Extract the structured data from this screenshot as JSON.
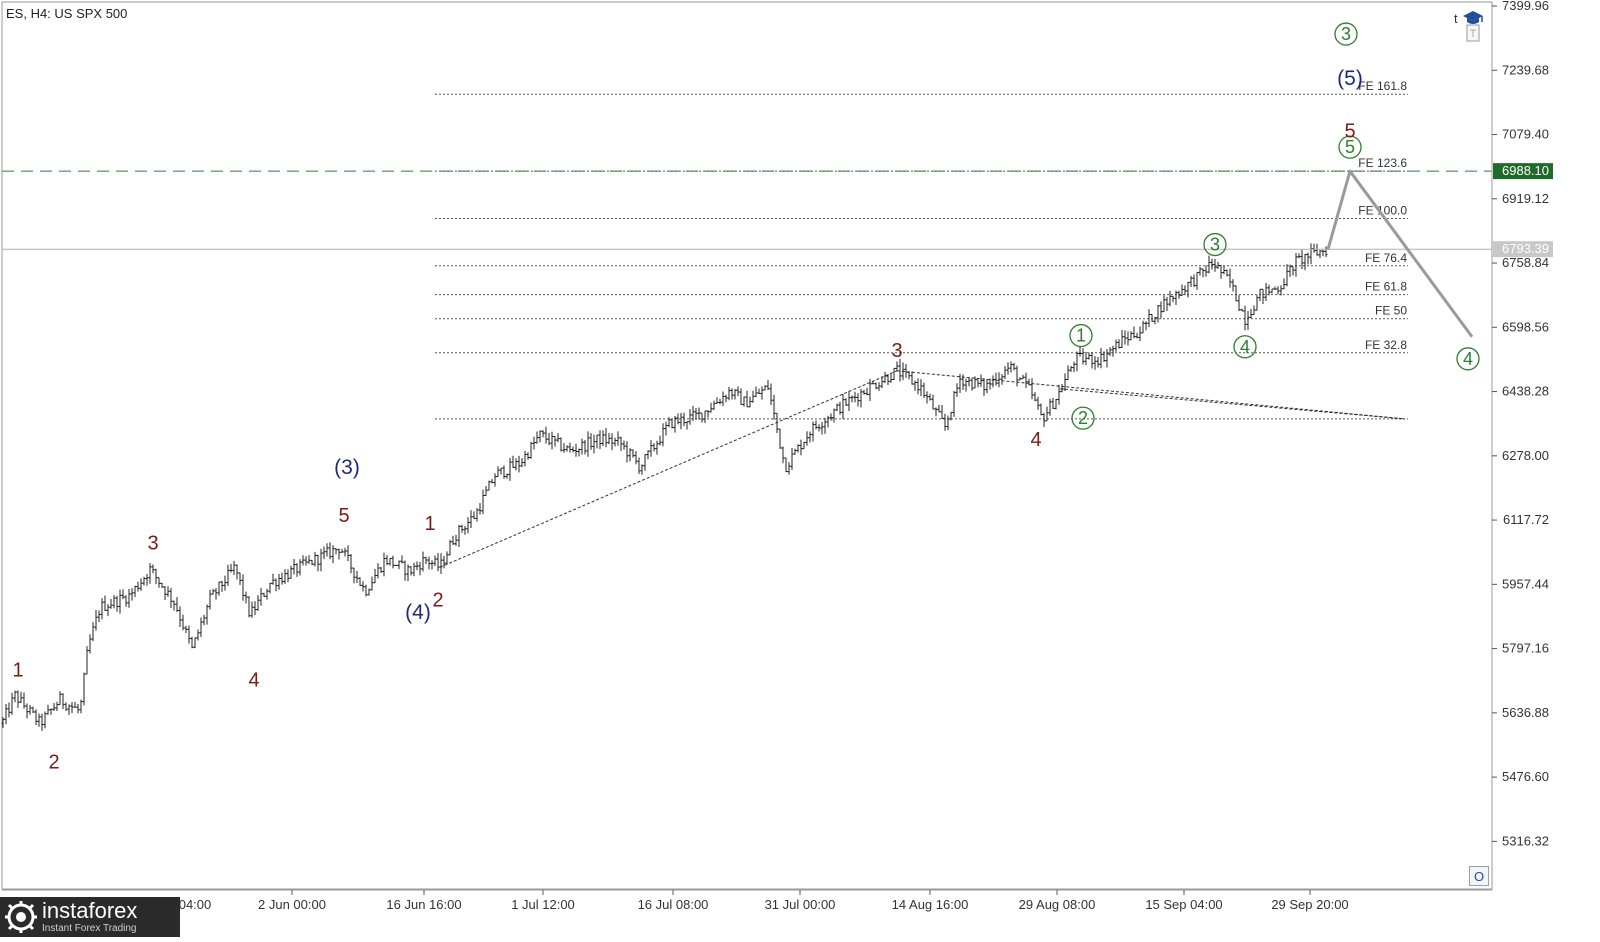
{
  "header": {
    "title": "ES, H4:  US SPX 500"
  },
  "toolbar": {
    "t_label": "t",
    "icon": "graduation-cap-icon",
    "sub_icon": "document-icon"
  },
  "watermark": {
    "brand": "instaforex",
    "tagline": "Instant Forex Trading"
  },
  "corner_button": {
    "label": "O",
    "icon": "circle-icon"
  },
  "colors": {
    "bars": "#222222",
    "dark_red": "#7b1b13",
    "navy": "#1c2b78",
    "green": "#2f7d2f",
    "target_line": "#2e7d32",
    "price_line": "#b0b0b0",
    "projection": "#9a9a9a",
    "fib": "#555555"
  },
  "chart_data": {
    "type": "ohlc",
    "symbol": "ES",
    "timeframe": "H4",
    "instrument": "US SPX 500",
    "y_range": [
      5195,
      7400
    ],
    "y_ticks": [
      "7399.96",
      "7239.68",
      "7079.40",
      "6919.12",
      "6758.84",
      "6598.56",
      "6438.28",
      "6278.00",
      "6117.72",
      "5957.44",
      "5797.16",
      "5636.88",
      "5476.60",
      "5316.32"
    ],
    "x_labels": [
      "2 Jun 00:00",
      "16 Jun 16:00",
      "1 Jul 12:00",
      "16 Jul 08:00",
      "31 Jul 00:00",
      "14 Aug 16:00",
      "29 Aug 08:00",
      "15 Sep 04:00",
      "29 Sep 20:00"
    ],
    "x_label_partial": "04:00",
    "price_path": [
      [
        0,
        5600
      ],
      [
        15,
        5680
      ],
      [
        40,
        5610
      ],
      [
        60,
        5670
      ],
      [
        80,
        5640
      ],
      [
        88,
        5800
      ],
      [
        100,
        5900
      ],
      [
        130,
        5930
      ],
      [
        150,
        5995
      ],
      [
        175,
        5910
      ],
      [
        192,
        5795
      ],
      [
        210,
        5920
      ],
      [
        235,
        6000
      ],
      [
        250,
        5880
      ],
      [
        270,
        5960
      ],
      [
        300,
        6000
      ],
      [
        340,
        6050
      ],
      [
        365,
        5940
      ],
      [
        385,
        6020
      ],
      [
        410,
        5990
      ],
      [
        425,
        6020
      ],
      [
        440,
        6000
      ],
      [
        455,
        6080
      ],
      [
        475,
        6130
      ],
      [
        495,
        6230
      ],
      [
        520,
        6260
      ],
      [
        540,
        6330
      ],
      [
        570,
        6290
      ],
      [
        600,
        6320
      ],
      [
        620,
        6310
      ],
      [
        640,
        6250
      ],
      [
        670,
        6360
      ],
      [
        700,
        6380
      ],
      [
        730,
        6440
      ],
      [
        745,
        6410
      ],
      [
        768,
        6450
      ],
      [
        785,
        6250
      ],
      [
        810,
        6340
      ],
      [
        840,
        6400
      ],
      [
        870,
        6450
      ],
      [
        897,
        6490
      ],
      [
        920,
        6450
      ],
      [
        945,
        6350
      ],
      [
        960,
        6470
      ],
      [
        985,
        6450
      ],
      [
        1010,
        6500
      ],
      [
        1030,
        6440
      ],
      [
        1042,
        6370
      ],
      [
        1058,
        6430
      ],
      [
        1075,
        6520
      ],
      [
        1100,
        6520
      ],
      [
        1125,
        6570
      ],
      [
        1140,
        6590
      ],
      [
        1160,
        6650
      ],
      [
        1185,
        6700
      ],
      [
        1200,
        6730
      ],
      [
        1213,
        6760
      ],
      [
        1230,
        6710
      ],
      [
        1245,
        6620
      ],
      [
        1260,
        6680
      ],
      [
        1280,
        6700
      ],
      [
        1295,
        6760
      ],
      [
        1310,
        6780
      ],
      [
        1328,
        6793
      ]
    ],
    "current_price": "6793.39",
    "target_price": "6988.10",
    "projection": [
      [
        1328,
        6793
      ],
      [
        1350,
        6988
      ],
      [
        1472,
        6575
      ]
    ],
    "fib_levels": [
      {
        "label": "FE 161.8",
        "price": 7180
      },
      {
        "label": "FE 123.6",
        "price": 6988
      },
      {
        "label": "FE 100.0",
        "price": 6870
      },
      {
        "label": "FE 76.4",
        "price": 6752
      },
      {
        "label": "FE 61.8",
        "price": 6680
      },
      {
        "label": "FE 50",
        "price": 6620
      },
      {
        "label": "FE 32.8",
        "price": 6535
      },
      {
        "label": "",
        "price": 6370
      }
    ],
    "trendlines": [
      {
        "points": [
          [
            440,
            6000
          ],
          [
            897,
            6490
          ]
        ]
      },
      {
        "points": [
          [
            897,
            6490
          ],
          [
            1405,
            6370
          ]
        ]
      },
      {
        "points": [
          [
            1060,
            6445
          ],
          [
            1405,
            6370
          ]
        ]
      }
    ],
    "wave_labels": [
      {
        "text": "1",
        "x": 18,
        "y": 5745,
        "style": "dark_red"
      },
      {
        "text": "2",
        "x": 54,
        "y": 5515,
        "style": "dark_red"
      },
      {
        "text": "3",
        "x": 153,
        "y": 6062,
        "style": "dark_red"
      },
      {
        "text": "4",
        "x": 254,
        "y": 5720,
        "style": "dark_red"
      },
      {
        "text": "5",
        "x": 344,
        "y": 6130,
        "style": "dark_red"
      },
      {
        "text": "(3)",
        "x": 347,
        "y": 6250,
        "style": "navy"
      },
      {
        "text": "1",
        "x": 430,
        "y": 6110,
        "style": "dark_red"
      },
      {
        "text": "(4)",
        "x": 418,
        "y": 5888,
        "style": "navy"
      },
      {
        "text": "2",
        "x": 438,
        "y": 5920,
        "style": "dark_red"
      },
      {
        "text": "3",
        "x": 897,
        "y": 6542,
        "style": "dark_red"
      },
      {
        "text": "4",
        "x": 1036,
        "y": 6320,
        "style": "dark_red"
      },
      {
        "text": "1",
        "x": 1081,
        "y": 6578,
        "style": "green"
      },
      {
        "text": "2",
        "x": 1083,
        "y": 6372,
        "style": "green"
      },
      {
        "text": "3",
        "x": 1215,
        "y": 6805,
        "style": "green"
      },
      {
        "text": "4",
        "x": 1245,
        "y": 6550,
        "style": "green"
      },
      {
        "text": "5",
        "x": 1350,
        "y": 7048,
        "style": "green"
      },
      {
        "text": "5",
        "x": 1350,
        "y": 7090,
        "style": "dark_red"
      },
      {
        "text": "(5)",
        "x": 1350,
        "y": 7220,
        "style": "navy"
      },
      {
        "text": "3",
        "x": 1346,
        "y": 7330,
        "style": "green"
      },
      {
        "text": "4",
        "x": 1468,
        "y": 6520,
        "style": "green"
      }
    ]
  }
}
